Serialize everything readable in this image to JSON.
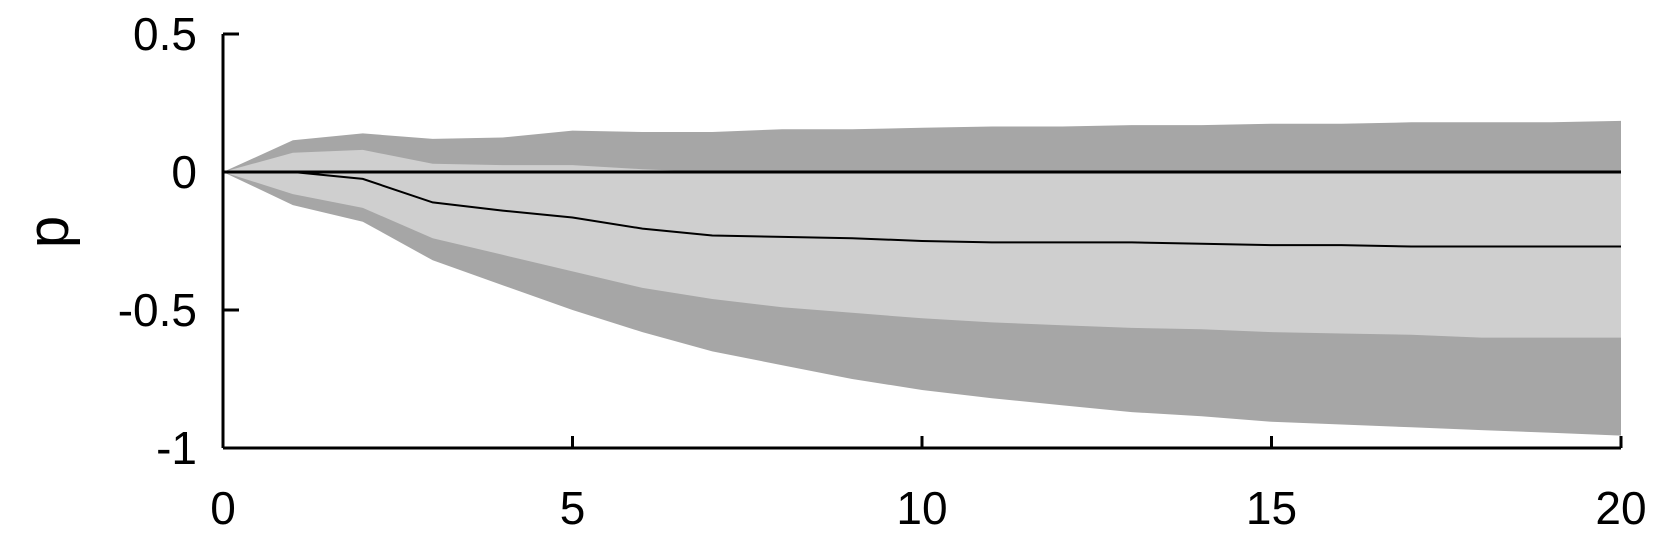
{
  "chart_data": {
    "type": "area",
    "title": "",
    "xlabel": "",
    "ylabel": "p",
    "xlim": [
      0,
      20
    ],
    "ylim": [
      -1,
      0.5
    ],
    "xticks": [
      0,
      5,
      10,
      15,
      20
    ],
    "xtick_labels": [
      "0",
      "5",
      "10",
      "15",
      "20"
    ],
    "yticks": [
      0.5,
      0,
      -0.5,
      -1
    ],
    "ytick_labels": [
      "0.5",
      "0",
      "-0.5",
      "-1"
    ],
    "grid": false,
    "legend": "none",
    "x": [
      0,
      1,
      2,
      3,
      4,
      5,
      6,
      7,
      8,
      9,
      10,
      11,
      12,
      13,
      14,
      15,
      16,
      17,
      18,
      19,
      20
    ],
    "series": [
      {
        "role": "outer-band",
        "color": "#a6a6a6",
        "upper": [
          0,
          0.115,
          0.14,
          0.12,
          0.125,
          0.15,
          0.145,
          0.145,
          0.155,
          0.155,
          0.16,
          0.165,
          0.165,
          0.17,
          0.17,
          0.175,
          0.175,
          0.18,
          0.18,
          0.18,
          0.185
        ],
        "lower": [
          0,
          -0.12,
          -0.18,
          -0.32,
          -0.41,
          -0.5,
          -0.58,
          -0.65,
          -0.7,
          -0.75,
          -0.79,
          -0.82,
          -0.845,
          -0.87,
          -0.885,
          -0.905,
          -0.915,
          -0.925,
          -0.935,
          -0.945,
          -0.955
        ]
      },
      {
        "role": "inner-band",
        "color": "#cfcfcf",
        "upper": [
          0,
          0.07,
          0.08,
          0.03,
          0.025,
          0.025,
          0.01,
          0,
          0,
          0,
          0,
          0,
          0,
          0,
          0,
          0,
          0,
          0,
          0,
          0,
          0
        ],
        "lower": [
          0,
          -0.08,
          -0.13,
          -0.24,
          -0.3,
          -0.36,
          -0.42,
          -0.46,
          -0.49,
          -0.51,
          -0.53,
          -0.545,
          -0.555,
          -0.565,
          -0.57,
          -0.58,
          -0.585,
          -0.59,
          -0.6,
          -0.6,
          -0.6
        ]
      },
      {
        "role": "median-line",
        "color": "#000000",
        "values": [
          0,
          0,
          -0.025,
          -0.11,
          -0.14,
          -0.165,
          -0.205,
          -0.23,
          -0.235,
          -0.24,
          -0.25,
          -0.255,
          -0.255,
          -0.255,
          -0.26,
          -0.265,
          -0.265,
          -0.27,
          -0.27,
          -0.27,
          -0.27
        ]
      },
      {
        "role": "zero-line",
        "color": "#000000",
        "values": [
          0,
          0,
          0,
          0,
          0,
          0,
          0,
          0,
          0,
          0,
          0,
          0,
          0,
          0,
          0,
          0,
          0,
          0,
          0,
          0,
          0
        ]
      }
    ]
  }
}
